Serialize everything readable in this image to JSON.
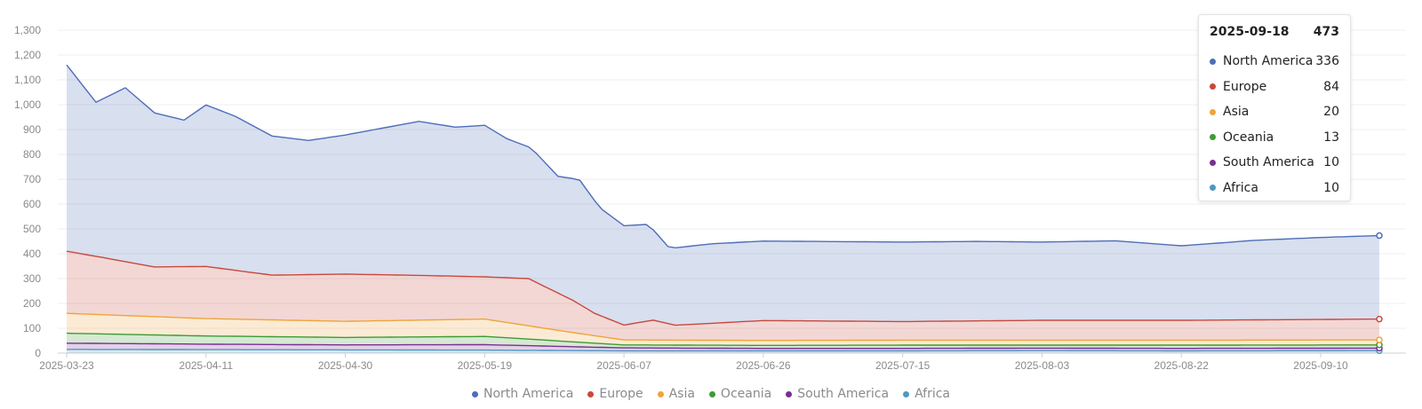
{
  "chart_data": {
    "type": "area",
    "stacked": true,
    "grid": "horizontal",
    "legend_position": "bottom",
    "ylim": [
      0,
      1300
    ],
    "y_ticks": [
      0,
      100,
      200,
      300,
      400,
      500,
      600,
      700,
      800,
      900,
      1000,
      1100,
      1200,
      1300
    ],
    "y_tick_labels": [
      "0",
      "100",
      "200",
      "300",
      "400",
      "500",
      "600",
      "700",
      "800",
      "900",
      "1,000",
      "1,100",
      "1,200",
      "1,300"
    ],
    "x_range": [
      "2025-03-23",
      "2025-09-18"
    ],
    "x_tick_labels": [
      "2025-03-23",
      "2025-04-11",
      "2025-04-30",
      "2025-05-19",
      "2025-06-07",
      "2025-06-26",
      "2025-07-15",
      "2025-08-03",
      "2025-08-22",
      "2025-09-10"
    ],
    "series": [
      {
        "name": "Africa",
        "color": "#4f97c3",
        "points": [
          [
            "2025-03-23",
            15
          ],
          [
            "2025-04-11",
            14
          ],
          [
            "2025-04-30",
            13
          ],
          [
            "2025-05-19",
            12
          ],
          [
            "2025-06-07",
            9
          ],
          [
            "2025-06-26",
            9
          ],
          [
            "2025-07-15",
            9
          ],
          [
            "2025-08-03",
            10
          ],
          [
            "2025-08-22",
            9
          ],
          [
            "2025-09-18",
            10
          ]
        ]
      },
      {
        "name": "South America",
        "color": "#7b2e91",
        "points": [
          [
            "2025-03-23",
            25
          ],
          [
            "2025-04-11",
            22
          ],
          [
            "2025-04-30",
            20
          ],
          [
            "2025-05-19",
            22
          ],
          [
            "2025-06-07",
            12
          ],
          [
            "2025-06-26",
            10
          ],
          [
            "2025-07-15",
            10
          ],
          [
            "2025-08-03",
            10
          ],
          [
            "2025-08-22",
            10
          ],
          [
            "2025-09-18",
            10
          ]
        ]
      },
      {
        "name": "Oceania",
        "color": "#3e9a35",
        "points": [
          [
            "2025-03-23",
            40
          ],
          [
            "2025-04-11",
            33
          ],
          [
            "2025-04-30",
            30
          ],
          [
            "2025-05-19",
            33
          ],
          [
            "2025-06-07",
            12
          ],
          [
            "2025-06-26",
            12
          ],
          [
            "2025-07-15",
            13
          ],
          [
            "2025-08-03",
            12
          ],
          [
            "2025-08-22",
            13
          ],
          [
            "2025-09-18",
            13
          ]
        ]
      },
      {
        "name": "Asia",
        "color": "#f0a43a",
        "points": [
          [
            "2025-03-23",
            80
          ],
          [
            "2025-04-11",
            70
          ],
          [
            "2025-04-30",
            65
          ],
          [
            "2025-05-19",
            70
          ],
          [
            "2025-05-30",
            40
          ],
          [
            "2025-06-07",
            20
          ],
          [
            "2025-06-26",
            20
          ],
          [
            "2025-07-15",
            20
          ],
          [
            "2025-08-03",
            20
          ],
          [
            "2025-08-22",
            20
          ],
          [
            "2025-09-18",
            20
          ]
        ]
      },
      {
        "name": "Europe",
        "color": "#c9483b",
        "points": [
          [
            "2025-03-23",
            250
          ],
          [
            "2025-03-28",
            230
          ],
          [
            "2025-04-04",
            200
          ],
          [
            "2025-04-11",
            210
          ],
          [
            "2025-04-20",
            180
          ],
          [
            "2025-04-30",
            190
          ],
          [
            "2025-05-10",
            180
          ],
          [
            "2025-05-19",
            170
          ],
          [
            "2025-05-25",
            190
          ],
          [
            "2025-05-31",
            130
          ],
          [
            "2025-06-03",
            90
          ],
          [
            "2025-06-07",
            60
          ],
          [
            "2025-06-11",
            80
          ],
          [
            "2025-06-14",
            60
          ],
          [
            "2025-06-26",
            80
          ],
          [
            "2025-07-15",
            75
          ],
          [
            "2025-08-03",
            80
          ],
          [
            "2025-08-22",
            80
          ],
          [
            "2025-09-18",
            84
          ]
        ]
      },
      {
        "name": "North America",
        "color": "#4d6eb8",
        "points": [
          [
            "2025-03-23",
            750
          ],
          [
            "2025-03-27",
            620
          ],
          [
            "2025-03-31",
            700
          ],
          [
            "2025-04-04",
            620
          ],
          [
            "2025-04-08",
            590
          ],
          [
            "2025-04-11",
            650
          ],
          [
            "2025-04-15",
            620
          ],
          [
            "2025-04-20",
            560
          ],
          [
            "2025-04-25",
            540
          ],
          [
            "2025-04-30",
            560
          ],
          [
            "2025-05-05",
            590
          ],
          [
            "2025-05-10",
            620
          ],
          [
            "2025-05-15",
            600
          ],
          [
            "2025-05-19",
            610
          ],
          [
            "2025-05-22",
            560
          ],
          [
            "2025-05-26",
            520
          ],
          [
            "2025-05-29",
            470
          ],
          [
            "2025-06-01",
            500
          ],
          [
            "2025-06-04",
            430
          ],
          [
            "2025-06-07",
            400
          ],
          [
            "2025-06-10",
            390
          ],
          [
            "2025-06-13",
            310
          ],
          [
            "2025-06-19",
            320
          ],
          [
            "2025-06-26",
            320
          ],
          [
            "2025-07-05",
            320
          ],
          [
            "2025-07-15",
            320
          ],
          [
            "2025-07-25",
            320
          ],
          [
            "2025-08-03",
            315
          ],
          [
            "2025-08-13",
            320
          ],
          [
            "2025-08-22",
            300
          ],
          [
            "2025-09-01",
            320
          ],
          [
            "2025-09-10",
            330
          ],
          [
            "2025-09-18",
            336
          ]
        ]
      }
    ],
    "tooltip": {
      "date": "2025-09-18",
      "total": 473,
      "rows": [
        {
          "name": "North America",
          "value": 336,
          "color": "#4d6eb8"
        },
        {
          "name": "Europe",
          "value": 84,
          "color": "#c9483b"
        },
        {
          "name": "Asia",
          "value": 20,
          "color": "#f0a43a"
        },
        {
          "name": "Oceania",
          "value": 13,
          "color": "#3e9a35"
        },
        {
          "name": "South America",
          "value": 10,
          "color": "#7b2e91"
        },
        {
          "name": "Africa",
          "value": 10,
          "color": "#4f97c3"
        }
      ]
    },
    "legend": [
      {
        "name": "North America",
        "color": "#4d6eb8"
      },
      {
        "name": "Europe",
        "color": "#c9483b"
      },
      {
        "name": "Asia",
        "color": "#f0a43a"
      },
      {
        "name": "Oceania",
        "color": "#3e9a35"
      },
      {
        "name": "South America",
        "color": "#7b2e91"
      },
      {
        "name": "Africa",
        "color": "#4f97c3"
      }
    ]
  }
}
